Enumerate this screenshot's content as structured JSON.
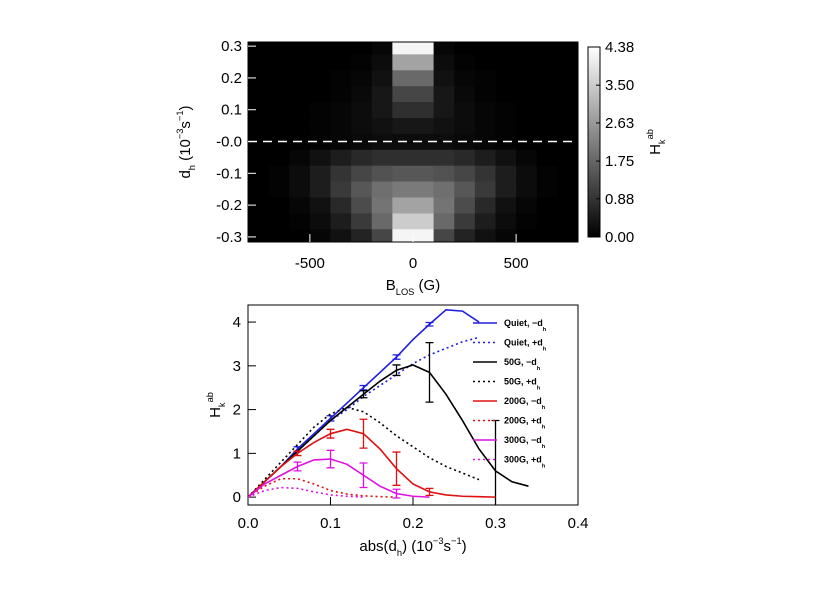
{
  "chart_data": [
    {
      "type": "heatmap",
      "xlabel": [
        "B",
        "LOS",
        " (G)"
      ],
      "ylabel": [
        "d",
        "h",
        "  (10",
        "−3",
        "s",
        "−1",
        ")"
      ],
      "colorbar_label": [
        "H",
        "k",
        "ab"
      ],
      "xlim": [
        -800,
        800
      ],
      "ylim": [
        -0.316,
        0.313
      ],
      "xticks": [
        -500,
        0,
        500
      ],
      "yticks": [
        -0.3,
        -0.2,
        -0.1,
        {
          "value": 0,
          "label": "-0.0"
        },
        0.1,
        0.2,
        0.3
      ],
      "clim": [
        0,
        4.38
      ],
      "cticks": [
        {
          "value": 0,
          "label": "0.00"
        },
        0.88,
        1.75,
        2.63,
        {
          "value": 3.5,
          "label": "3.50"
        },
        4.38
      ],
      "x_bins": [
        -800,
        -700,
        -600,
        -500,
        -400,
        -300,
        -200,
        -100,
        0,
        100,
        200,
        300,
        400,
        500,
        600,
        700,
        800
      ],
      "y_bins": [
        -0.325,
        -0.275,
        -0.225,
        -0.175,
        -0.125,
        -0.075,
        -0.025,
        0.025,
        0.075,
        0.125,
        0.175,
        0.225,
        0.275,
        0.325
      ],
      "z": [
        [
          0,
          0,
          0,
          0.1,
          0.3,
          0.6,
          1.2,
          4.2,
          4.2,
          1.2,
          0.6,
          0.3,
          0.1,
          0,
          0,
          0
        ],
        [
          0,
          0,
          0.05,
          0.2,
          0.5,
          1.0,
          1.8,
          3.5,
          3.5,
          1.8,
          1.0,
          0.5,
          0.2,
          0.05,
          0,
          0
        ],
        [
          0,
          0,
          0.1,
          0.3,
          0.7,
          1.3,
          2.0,
          2.8,
          2.8,
          2.0,
          1.3,
          0.7,
          0.3,
          0.1,
          0,
          0
        ],
        [
          0,
          0.05,
          0.2,
          0.5,
          1.0,
          1.5,
          1.9,
          2.1,
          2.1,
          1.9,
          1.5,
          1.0,
          0.5,
          0.2,
          0.05,
          0
        ],
        [
          0,
          0.05,
          0.2,
          0.5,
          0.9,
          1.2,
          1.4,
          1.5,
          1.5,
          1.4,
          1.2,
          0.9,
          0.5,
          0.2,
          0.05,
          0
        ],
        [
          0,
          0,
          0.1,
          0.3,
          0.5,
          0.7,
          0.8,
          0.8,
          0.8,
          0.8,
          0.7,
          0.5,
          0.3,
          0.1,
          0,
          0
        ],
        [
          0,
          0,
          0,
          0.05,
          0.1,
          0.15,
          0.2,
          0.2,
          0.2,
          0.2,
          0.15,
          0.1,
          0.05,
          0,
          0,
          0
        ],
        [
          0,
          0,
          0,
          0.05,
          0.1,
          0.2,
          0.3,
          0.4,
          0.4,
          0.3,
          0.2,
          0.1,
          0.05,
          0,
          0,
          0
        ],
        [
          0,
          0,
          0,
          0.05,
          0.1,
          0.2,
          0.4,
          0.8,
          0.8,
          0.4,
          0.2,
          0.1,
          0.05,
          0,
          0,
          0
        ],
        [
          0,
          0,
          0,
          0,
          0.05,
          0.15,
          0.4,
          1.2,
          1.2,
          0.4,
          0.15,
          0.05,
          0,
          0,
          0,
          0
        ],
        [
          0,
          0,
          0,
          0,
          0.05,
          0.1,
          0.3,
          1.8,
          1.8,
          0.3,
          0.1,
          0.05,
          0,
          0,
          0,
          0
        ],
        [
          0,
          0,
          0,
          0,
          0,
          0.05,
          0.2,
          2.8,
          2.8,
          0.2,
          0.05,
          0,
          0,
          0,
          0,
          0
        ],
        [
          0,
          0,
          0,
          0,
          0,
          0,
          0.1,
          4.2,
          4.2,
          0.1,
          0,
          0,
          0,
          0,
          0,
          0
        ]
      ]
    },
    {
      "type": "line",
      "xlabel": [
        "abs(d",
        "h",
        ")  (10",
        "−3",
        "s",
        "−1",
        ")"
      ],
      "ylabel": [
        "H",
        "k",
        "ab"
      ],
      "xlim": [
        0,
        0.4
      ],
      "ylim": [
        -0.18,
        4.39
      ],
      "xticks": [
        {
          "value": 0,
          "label": "0.0"
        },
        0.1,
        0.2,
        0.3,
        0.4
      ],
      "yticks": [
        0,
        1,
        2,
        3,
        4
      ],
      "legend": "upper right",
      "series": [
        {
          "name": [
            "Quiet, −d",
            "h"
          ],
          "color": "#1f1fe0",
          "dashed": false,
          "x": [
            0,
            0.02,
            0.04,
            0.06,
            0.08,
            0.1,
            0.12,
            0.14,
            0.16,
            0.18,
            0.2,
            0.22,
            0.24,
            0.26,
            0.28
          ],
          "values": [
            0,
            0.35,
            0.7,
            1.1,
            1.45,
            1.8,
            2.15,
            2.5,
            2.85,
            3.2,
            3.6,
            3.95,
            4.28,
            4.25,
            4.0
          ],
          "errors": [
            null,
            null,
            null,
            0.05,
            null,
            0.06,
            null,
            0.05,
            null,
            0.05,
            null,
            0.04,
            null,
            null,
            null
          ]
        },
        {
          "name": [
            "Quiet, +d",
            "h"
          ],
          "color": "#1f1fe0",
          "dashed": true,
          "x": [
            0,
            0.02,
            0.04,
            0.06,
            0.08,
            0.1,
            0.12,
            0.14,
            0.16,
            0.18,
            0.2,
            0.22,
            0.24,
            0.26,
            0.28
          ],
          "values": [
            0,
            0.35,
            0.7,
            1.05,
            1.4,
            1.75,
            2.0,
            2.3,
            2.55,
            2.8,
            3.05,
            3.25,
            3.4,
            3.55,
            3.65
          ]
        },
        {
          "name": [
            "50G, −d",
            "h"
          ],
          "color": "#000000",
          "dashed": false,
          "x": [
            0,
            0.02,
            0.04,
            0.06,
            0.08,
            0.1,
            0.12,
            0.14,
            0.16,
            0.18,
            0.2,
            0.22,
            0.24,
            0.26,
            0.28,
            0.3,
            0.32,
            0.34
          ],
          "values": [
            0,
            0.35,
            0.7,
            1.05,
            1.4,
            1.75,
            2.05,
            2.35,
            2.65,
            2.9,
            3.02,
            2.85,
            2.35,
            1.75,
            1.1,
            0.6,
            0.35,
            0.25
          ],
          "errors": [
            null,
            null,
            null,
            null,
            null,
            null,
            null,
            0.08,
            null,
            0.12,
            null,
            0.68,
            null,
            null,
            null,
            1.15,
            null,
            null
          ]
        },
        {
          "name": [
            "50G, +d",
            "h"
          ],
          "color": "#000000",
          "dashed": true,
          "x": [
            0,
            0.02,
            0.04,
            0.06,
            0.08,
            0.1,
            0.12,
            0.14,
            0.16,
            0.18,
            0.2,
            0.22,
            0.24,
            0.26,
            0.28
          ],
          "values": [
            0,
            0.4,
            0.8,
            1.2,
            1.6,
            1.9,
            2.05,
            1.95,
            1.7,
            1.4,
            1.15,
            0.9,
            0.7,
            0.55,
            0.4
          ]
        },
        {
          "name": [
            "200G, −d",
            "h"
          ],
          "color": "#e01010",
          "dashed": false,
          "x": [
            0,
            0.02,
            0.04,
            0.06,
            0.08,
            0.1,
            0.12,
            0.14,
            0.16,
            0.18,
            0.2,
            0.22,
            0.24,
            0.26,
            0.28,
            0.3
          ],
          "values": [
            0,
            0.35,
            0.7,
            1.0,
            1.25,
            1.45,
            1.55,
            1.45,
            1.1,
            0.65,
            0.3,
            0.12,
            0.05,
            0.02,
            0.01,
            0
          ],
          "errors": [
            null,
            null,
            null,
            0.05,
            null,
            0.1,
            null,
            0.33,
            null,
            0.38,
            null,
            0.08,
            null,
            null,
            null,
            null
          ]
        },
        {
          "name": [
            "200G, +d",
            "h"
          ],
          "color": "#e01010",
          "dashed": true,
          "x": [
            0,
            0.02,
            0.04,
            0.06,
            0.08,
            0.1,
            0.12,
            0.14,
            0.16,
            0.18
          ],
          "values": [
            0,
            0.25,
            0.42,
            0.42,
            0.3,
            0.15,
            0.07,
            0.03,
            0.01,
            0
          ]
        },
        {
          "name": [
            "300G, −d",
            "h"
          ],
          "color": "#e010e0",
          "dashed": false,
          "x": [
            0,
            0.02,
            0.04,
            0.06,
            0.08,
            0.1,
            0.12,
            0.14,
            0.16,
            0.18,
            0.2,
            0.22
          ],
          "values": [
            0,
            0.3,
            0.5,
            0.7,
            0.85,
            0.87,
            0.75,
            0.5,
            0.25,
            0.08,
            0.02,
            0
          ],
          "errors": [
            null,
            null,
            null,
            0.1,
            null,
            0.2,
            null,
            0.28,
            null,
            0.1,
            null,
            null
          ]
        },
        {
          "name": [
            "300G, +d",
            "h"
          ],
          "color": "#e010e0",
          "dashed": true,
          "x": [
            0,
            0.02,
            0.04,
            0.06,
            0.08,
            0.1,
            0.12,
            0.14
          ],
          "values": [
            0,
            0.15,
            0.22,
            0.2,
            0.12,
            0.05,
            0.02,
            0
          ]
        }
      ]
    }
  ]
}
